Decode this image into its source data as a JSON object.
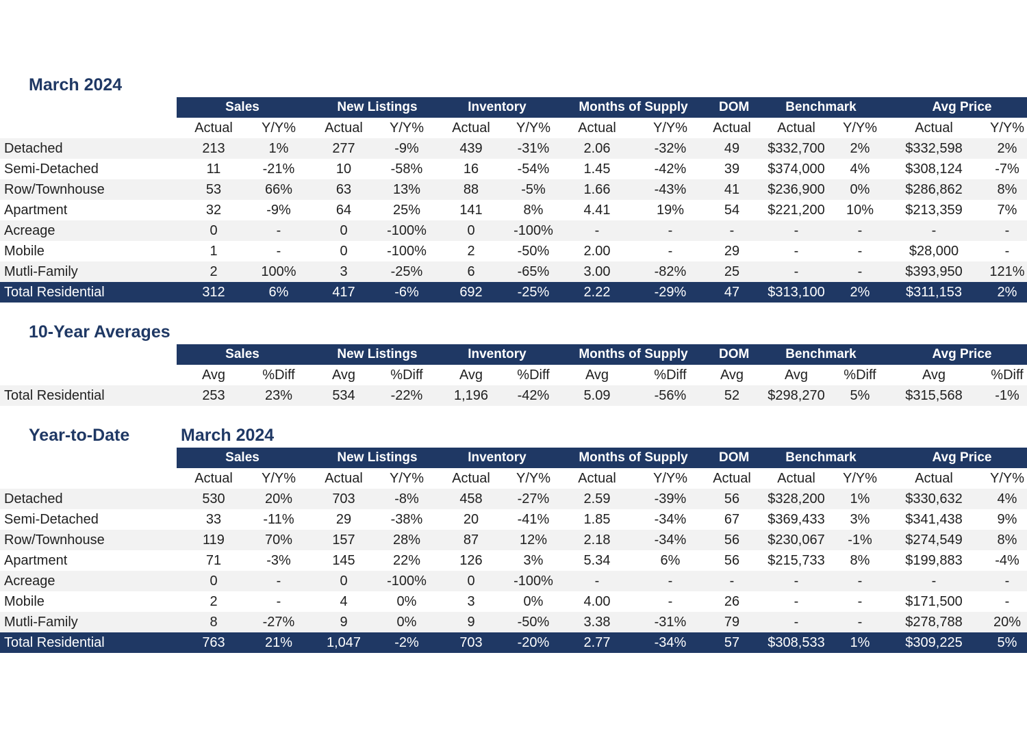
{
  "sections": [
    {
      "title": "March 2024",
      "subtitle": "",
      "groups": [
        "Sales",
        "New Listings",
        "Inventory",
        "Months of Supply",
        "DOM",
        "Benchmark",
        "Avg Price"
      ],
      "columns": [
        "Actual",
        "Y/Y%",
        "Actual",
        "Y/Y%",
        "Actual",
        "Y/Y%",
        "Actual",
        "Y/Y%",
        "Actual",
        "Actual",
        "Y/Y%",
        "Actual",
        "Y/Y%"
      ],
      "rows": [
        {
          "label": "Detached",
          "values": [
            "213",
            "1%",
            "277",
            "-9%",
            "439",
            "-31%",
            "2.06",
            "-32%",
            "49",
            "$332,700",
            "2%",
            "$332,598",
            "2%"
          ]
        },
        {
          "label": "Semi-Detached",
          "values": [
            "11",
            "-21%",
            "10",
            "-58%",
            "16",
            "-54%",
            "1.45",
            "-42%",
            "39",
            "$374,000",
            "4%",
            "$308,124",
            "-7%"
          ]
        },
        {
          "label": "Row/Townhouse",
          "values": [
            "53",
            "66%",
            "63",
            "13%",
            "88",
            "-5%",
            "1.66",
            "-43%",
            "41",
            "$236,900",
            "0%",
            "$286,862",
            "8%"
          ]
        },
        {
          "label": "Apartment",
          "values": [
            "32",
            "-9%",
            "64",
            "25%",
            "141",
            "8%",
            "4.41",
            "19%",
            "54",
            "$221,200",
            "10%",
            "$213,359",
            "7%"
          ]
        },
        {
          "label": "Acreage",
          "values": [
            "0",
            "-",
            "0",
            "-100%",
            "0",
            "-100%",
            "-",
            "-",
            "-",
            "-",
            "-",
            "-",
            "-"
          ]
        },
        {
          "label": "Mobile",
          "values": [
            "1",
            "-",
            "0",
            "-100%",
            "2",
            "-50%",
            "2.00",
            "-",
            "29",
            "-",
            "-",
            "$28,000",
            "-"
          ]
        },
        {
          "label": "Mutli-Family",
          "values": [
            "2",
            "100%",
            "3",
            "-25%",
            "6",
            "-65%",
            "3.00",
            "-82%",
            "25",
            "-",
            "-",
            "$393,950",
            "121%"
          ]
        },
        {
          "label": "Total Residential",
          "values": [
            "312",
            "6%",
            "417",
            "-6%",
            "692",
            "-25%",
            "2.22",
            "-29%",
            "47",
            "$313,100",
            "2%",
            "$311,153",
            "2%"
          ]
        }
      ]
    },
    {
      "title": "10-Year Averages",
      "subtitle": "",
      "groups": [
        "Sales",
        "New Listings",
        "Inventory",
        "Months of Supply",
        "DOM",
        "Benchmark",
        "Avg Price"
      ],
      "columns": [
        "Avg",
        "%Diff",
        "Avg",
        "%Diff",
        "Avg",
        "%Diff",
        "Avg",
        "%Diff",
        "Avg",
        "Avg",
        "%Diff",
        "Avg",
        "%Diff"
      ],
      "rows": [
        {
          "label": "Total Residential",
          "values": [
            "253",
            "23%",
            "534",
            "-22%",
            "1,196",
            "-42%",
            "5.09",
            "-56%",
            "52",
            "$298,270",
            "5%",
            "$315,568",
            "-1%"
          ]
        }
      ]
    },
    {
      "title": "Year-to-Date",
      "subtitle": "March 2024",
      "groups": [
        "Sales",
        "New Listings",
        "Inventory",
        "Months of Supply",
        "DOM",
        "Benchmark",
        "Avg Price"
      ],
      "columns": [
        "Actual",
        "Y/Y%",
        "Actual",
        "Y/Y%",
        "Actual",
        "Y/Y%",
        "Actual",
        "Y/Y%",
        "Actual",
        "Actual",
        "Y/Y%",
        "Actual",
        "Y/Y%"
      ],
      "rows": [
        {
          "label": "Detached",
          "values": [
            "530",
            "20%",
            "703",
            "-8%",
            "458",
            "-27%",
            "2.59",
            "-39%",
            "56",
            "$328,200",
            "1%",
            "$330,632",
            "4%"
          ]
        },
        {
          "label": "Semi-Detached",
          "values": [
            "33",
            "-11%",
            "29",
            "-38%",
            "20",
            "-41%",
            "1.85",
            "-34%",
            "67",
            "$369,433",
            "3%",
            "$341,438",
            "9%"
          ]
        },
        {
          "label": "Row/Townhouse",
          "values": [
            "119",
            "70%",
            "157",
            "28%",
            "87",
            "12%",
            "2.18",
            "-34%",
            "56",
            "$230,067",
            "-1%",
            "$274,549",
            "8%"
          ]
        },
        {
          "label": "Apartment",
          "values": [
            "71",
            "-3%",
            "145",
            "22%",
            "126",
            "3%",
            "5.34",
            "6%",
            "56",
            "$215,733",
            "8%",
            "$199,883",
            "-4%"
          ]
        },
        {
          "label": "Acreage",
          "values": [
            "0",
            "-",
            "0",
            "-100%",
            "0",
            "-100%",
            "-",
            "-",
            "-",
            "-",
            "-",
            "-",
            "-"
          ]
        },
        {
          "label": "Mobile",
          "values": [
            "2",
            "-",
            "4",
            "0%",
            "3",
            "0%",
            "4.00",
            "-",
            "26",
            "-",
            "-",
            "$171,500",
            "-"
          ]
        },
        {
          "label": "Mutli-Family",
          "values": [
            "8",
            "-27%",
            "9",
            "0%",
            "9",
            "-50%",
            "3.38",
            "-31%",
            "79",
            "-",
            "-",
            "$278,788",
            "20%"
          ]
        },
        {
          "label": "Total Residential",
          "values": [
            "763",
            "21%",
            "1,047",
            "-2%",
            "703",
            "-20%",
            "2.77",
            "-34%",
            "57",
            "$308,533",
            "1%",
            "$309,225",
            "5%"
          ]
        }
      ]
    }
  ]
}
